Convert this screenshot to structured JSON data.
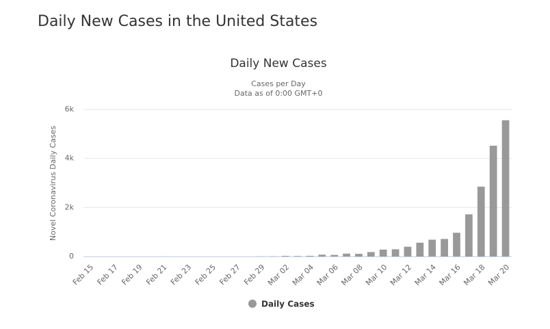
{
  "page_title": "Daily New Cases in the United States",
  "chart_data": {
    "type": "bar",
    "title": "Daily New Cases",
    "subtitle": [
      "Cases per Day",
      "Data as of 0:00 GMT+0"
    ],
    "y_label": "Novel Coronavirus Daily Cases",
    "categories": [
      "Feb 15",
      null,
      "Feb 17",
      null,
      "Feb 19",
      null,
      "Feb 21",
      null,
      "Feb 23",
      null,
      "Feb 25",
      null,
      "Feb 27",
      null,
      "Feb 29",
      null,
      "Mar 02",
      null,
      "Mar 04",
      null,
      "Mar 06",
      null,
      "Mar 08",
      null,
      "Mar 10",
      null,
      "Mar 12",
      null,
      "Mar 14",
      null,
      "Mar 16",
      null,
      "Mar 18",
      null,
      "Mar 20"
    ],
    "series": [
      {
        "name": "Daily Cases",
        "color": "#999999",
        "values": [
          0,
          0,
          0,
          0,
          0,
          0,
          2,
          0,
          0,
          0,
          0,
          0,
          1,
          0,
          6,
          8,
          25,
          20,
          28,
          74,
          65,
          118,
          109,
          181,
          281,
          294,
          398,
          563,
          686,
          716,
          968,
          1720,
          2850,
          4520,
          5560
        ]
      }
    ],
    "ylim": [
      0,
      6000
    ],
    "yticks": [
      0,
      {
        "value": 2000,
        "label": "2k"
      },
      {
        "value": 4000,
        "label": "4k"
      },
      {
        "value": 6000,
        "label": "6k"
      }
    ],
    "grid": true,
    "legend": "bottom"
  }
}
